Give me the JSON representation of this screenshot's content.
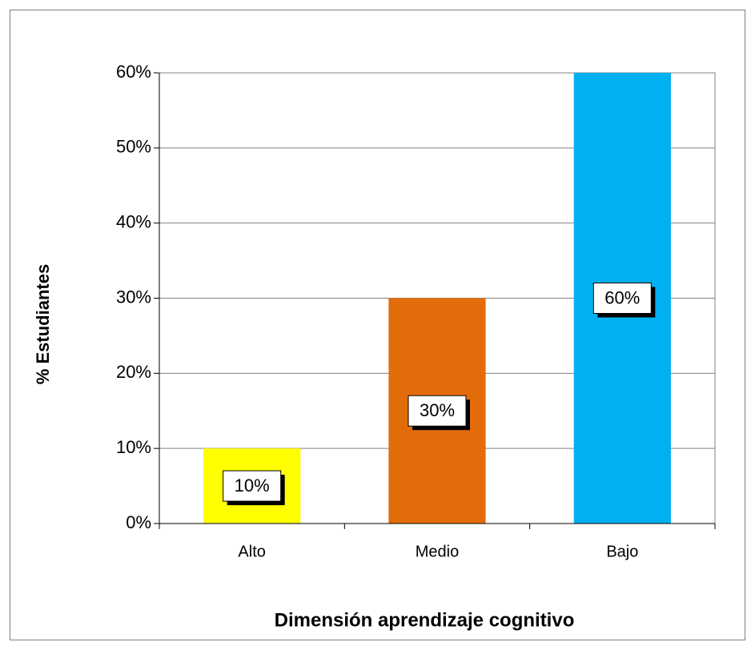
{
  "chart_data": {
    "type": "bar",
    "categories": [
      "Alto",
      "Medio",
      "Bajo"
    ],
    "values": [
      10,
      30,
      60
    ],
    "value_labels": [
      "10%",
      "30%",
      "60%"
    ],
    "colors": [
      "#ffff00",
      "#e36c0a",
      "#00b0f0"
    ],
    "xlabel": "Dimensión aprendizaje cognitivo",
    "ylabel": "% Estudiantes",
    "ylim": [
      0,
      60
    ],
    "yticks": [
      {
        "value": 0,
        "label": "0%"
      },
      {
        "value": 10,
        "label": "10%"
      },
      {
        "value": 20,
        "label": "20%"
      },
      {
        "value": 30,
        "label": "30%"
      },
      {
        "value": 40,
        "label": "40%"
      },
      {
        "value": 50,
        "label": "50%"
      },
      {
        "value": 60,
        "label": "60%"
      }
    ],
    "grid": true
  }
}
